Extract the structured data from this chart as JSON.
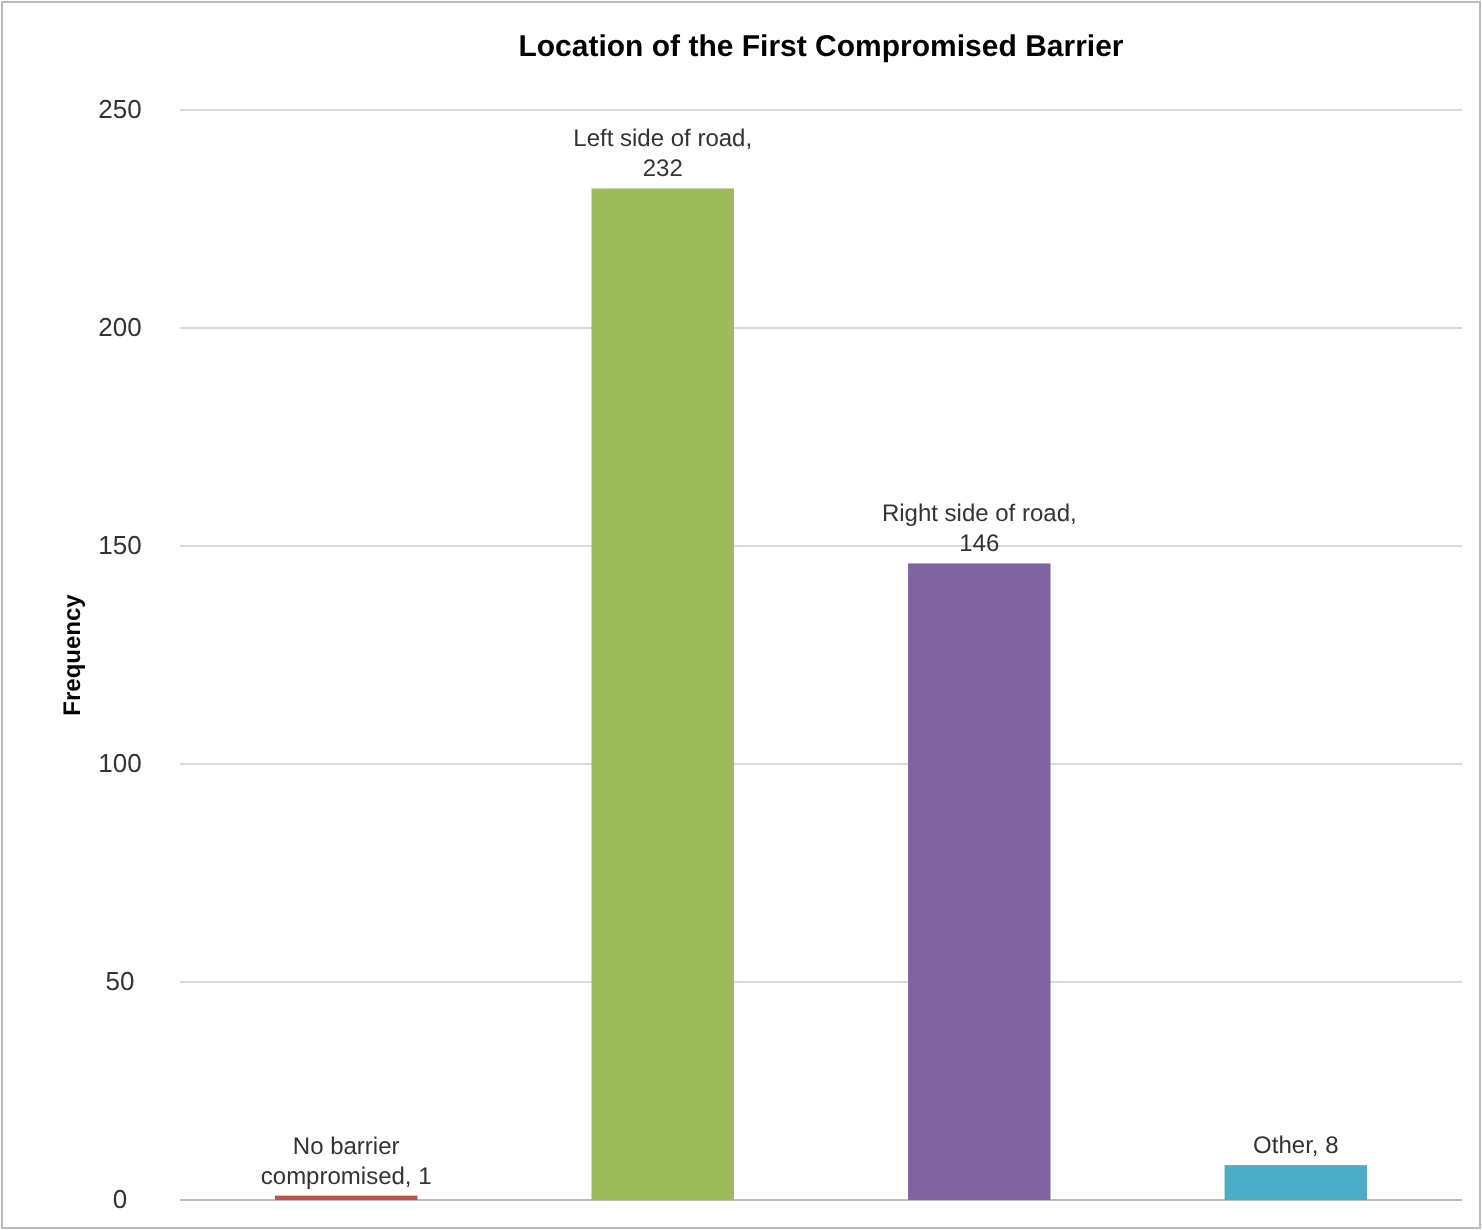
{
  "chart_data": {
    "type": "bar",
    "title": "Location of the First Compromised Barrier",
    "ylabel": "Frequency",
    "categories": [
      null,
      null,
      null,
      null
    ],
    "values": [
      1,
      232,
      146,
      8
    ],
    "colors": [
      "#c0504d",
      "#9bbb59",
      "#8064a2",
      "#4bacc6"
    ],
    "value_labels": [
      "No barrier compromised, 1",
      "Left side of road, 232",
      "Right side of road, 146",
      "Other, 8"
    ],
    "ylim": [
      0,
      250
    ],
    "yticks": [
      0,
      50,
      100,
      150,
      200,
      250
    ],
    "grid": "y"
  }
}
